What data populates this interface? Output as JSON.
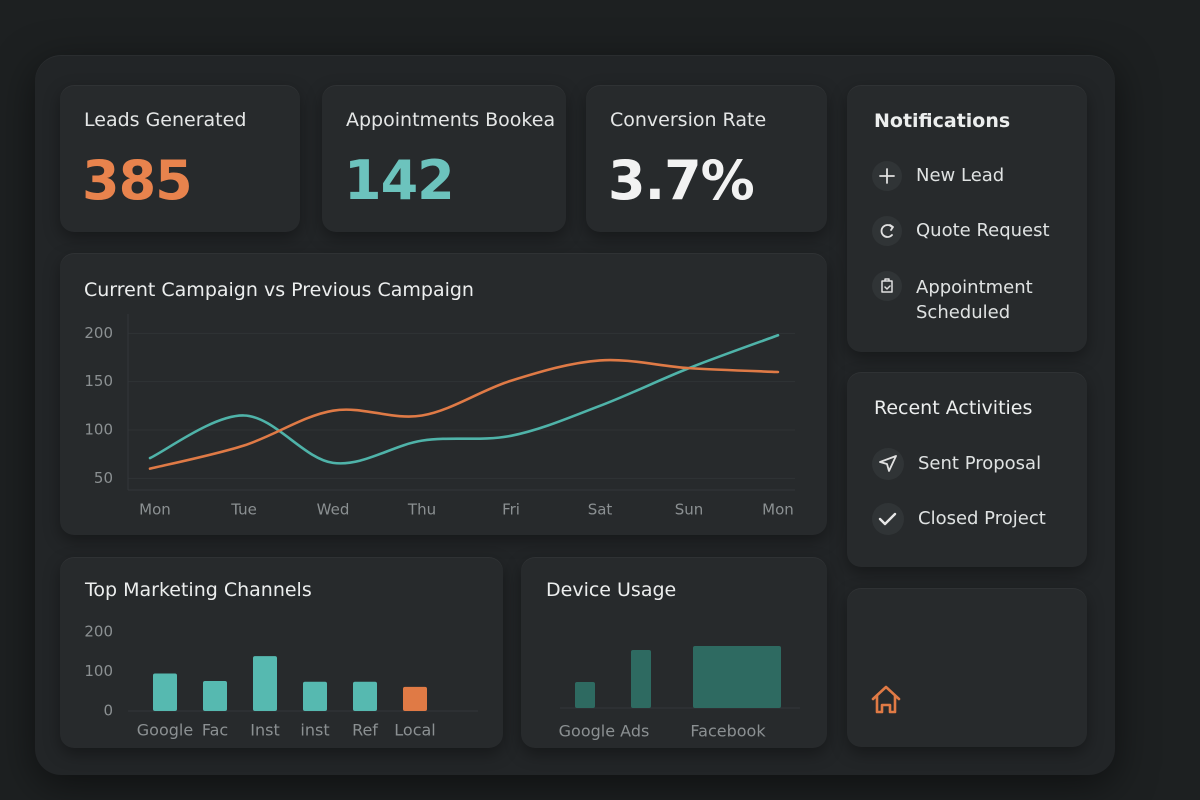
{
  "kpis": [
    {
      "label": "Leads Generated",
      "value": "385"
    },
    {
      "label": "Appointments Bookea",
      "value": "142"
    },
    {
      "label": "Conversion Rate",
      "value": "3.7%"
    }
  ],
  "notifications": {
    "title": "Notifications",
    "items": [
      "New Lead",
      "Quote Request",
      "Appointment Scheduled"
    ]
  },
  "recent_activities": {
    "title": "Recent Activities",
    "items": [
      "Sent Proposal",
      "Closed Project"
    ]
  },
  "chart_data": [
    {
      "type": "line",
      "title": "Current Campaign vs Previous Campaign",
      "categories": [
        "Mon",
        "Tue",
        "Wed",
        "Thu",
        "Fri",
        "Sat",
        "Sun",
        "Mon"
      ],
      "series": [
        {
          "color": "#4fb3a9",
          "values": [
            71,
            115,
            66,
            89,
            94,
            125,
            164,
            198
          ]
        },
        {
          "color": "#df7a46",
          "values": [
            60,
            84,
            120,
            115,
            151,
            172,
            164,
            160
          ]
        }
      ],
      "ylim": [
        40,
        220
      ],
      "yticks": [
        50,
        100,
        150,
        200
      ],
      "grid": true
    },
    {
      "type": "bar",
      "title": "Top Marketing Channels",
      "categories": [
        "Google",
        "Fac",
        "Inst",
        "inst",
        "Ref",
        "Local"
      ],
      "values": [
        95,
        76,
        139,
        74,
        74,
        61
      ],
      "colors": [
        "#56b9b0",
        "#56b9b0",
        "#56b9b0",
        "#56b9b0",
        "#56b9b0",
        "#e07a45"
      ],
      "ylim": [
        0,
        200
      ],
      "yticks": [
        0,
        100,
        200
      ]
    },
    {
      "type": "bar",
      "title": "Device Usage",
      "categories": [
        "Google Ads",
        null,
        "Facebook"
      ],
      "values": [
        26,
        58,
        62
      ],
      "color": "#2e6a61",
      "ylim": [
        0,
        70
      ]
    }
  ]
}
